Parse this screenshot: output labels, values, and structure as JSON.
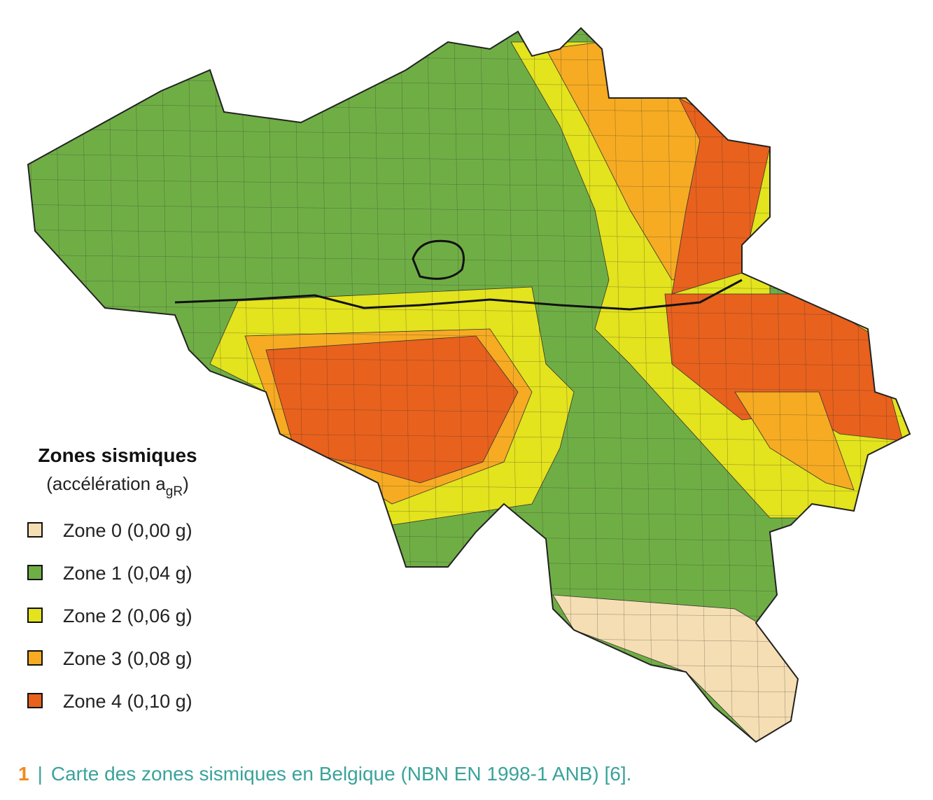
{
  "legend": {
    "title": "Zones sismiques",
    "subtitle": [
      "(accélération a",
      "gR",
      ")"
    ],
    "zones": [
      {
        "label": "Zone 0 (0,00 g)",
        "color": "#f5deb3"
      },
      {
        "label": "Zone 1 (0,04 g)",
        "color": "#6fae45"
      },
      {
        "label": "Zone 2 (0,06 g)",
        "color": "#e3e31e"
      },
      {
        "label": "Zone 3 (0,08 g)",
        "color": "#f6ab22"
      },
      {
        "label": "Zone 4 (0,10 g)",
        "color": "#e8611d"
      }
    ]
  },
  "caption": {
    "number": "1",
    "separator": "|",
    "text": "Carte des zones sismiques en Belgique (NBN EN 1998-1 ANB) [6]."
  }
}
